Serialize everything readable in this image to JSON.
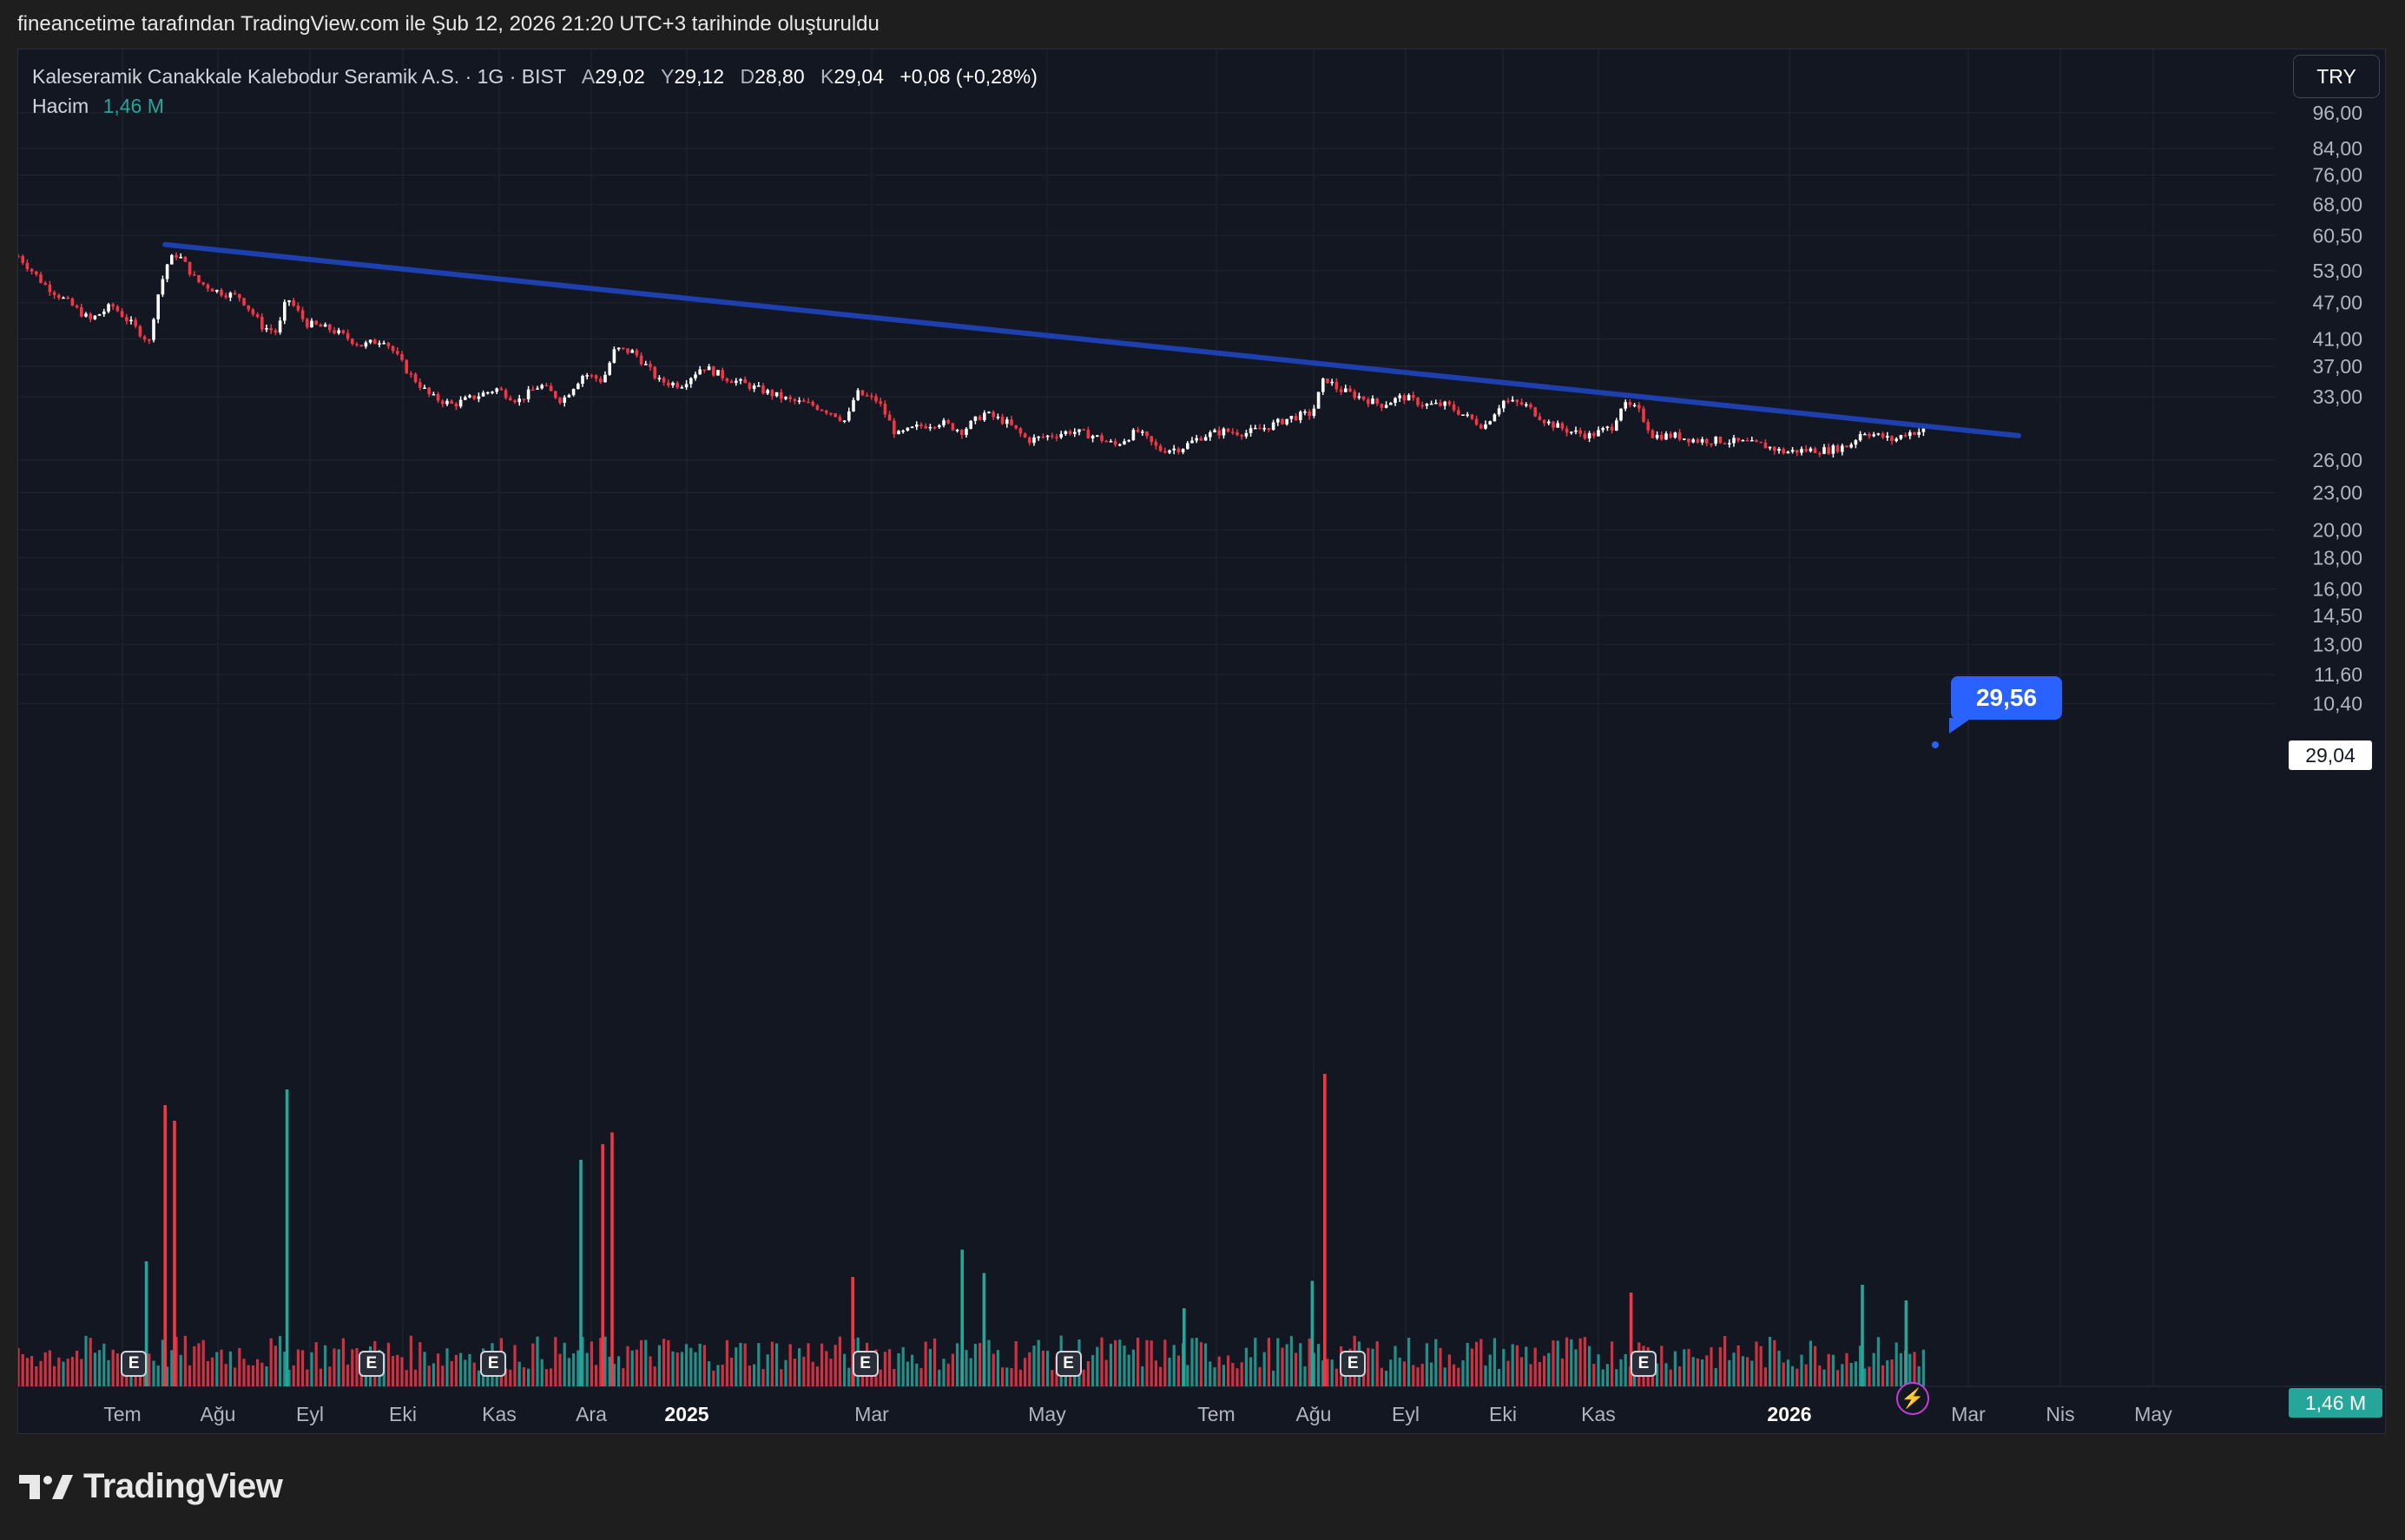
{
  "header": {
    "snapshot_text": "fineancetime tarafından TradingView.com ile Şub 12, 2026 21:20 UTC+3 tarihinde oluşturuldu"
  },
  "legend": {
    "symbol": "Kaleseramik Canakkale Kalebodur Seramik A.S. · 1G · BIST",
    "open_label": "A",
    "open": "29,02",
    "high_label": "Y",
    "high": "29,12",
    "low_label": "D",
    "low": "28,80",
    "close_label": "K",
    "close": "29,04",
    "change": "+0,08 (+0,28%)",
    "volume_label": "Hacim",
    "volume": "1,46 M"
  },
  "currency": "TRY",
  "callout": {
    "value": "29,56"
  },
  "last_price_tag": "29,04",
  "volume_tag": "1,46 M",
  "earnings_marker": "E",
  "brand": {
    "name": "TradingView"
  },
  "colors": {
    "up": "#ffffff",
    "down": "#f23645",
    "vol_up": "#26a69a",
    "vol_down": "#f23645",
    "trendline": "#1e3fae",
    "callout": "#2962ff"
  },
  "icons": {
    "earnings": "earnings-icon",
    "lightning": "lightning-icon",
    "logo": "tradingview-logo-icon"
  },
  "chart_data": {
    "type": "candlestick",
    "price_scale": "log",
    "y_ticks": [
      "96,00",
      "84,00",
      "76,00",
      "68,00",
      "60,50",
      "53,00",
      "47,00",
      "41,00",
      "37,00",
      "33,00",
      "26,00",
      "23,00",
      "20,00",
      "18,00",
      "16,00",
      "14,50",
      "13,00",
      "11,60",
      "10,40"
    ],
    "x_ticks": [
      "Tem",
      "Ağu",
      "Eyl",
      "Eki",
      "Kas",
      "Ara",
      "2025",
      "Mar",
      "May",
      "Tem",
      "Ağu",
      "Eyl",
      "Eki",
      "Kas",
      "2026",
      "Mar",
      "Nis",
      "May"
    ],
    "x_ticks_bold": [
      "2025",
      "2026"
    ],
    "close_path": [
      {
        "x": "2024-06-12",
        "y": 56.0
      },
      {
        "x": "2024-06-20",
        "y": 50.5
      },
      {
        "x": "2024-06-28",
        "y": 47.0
      },
      {
        "x": "2024-07-05",
        "y": 44.0
      },
      {
        "x": "2024-07-12",
        "y": 46.5
      },
      {
        "x": "2024-07-19",
        "y": 43.0
      },
      {
        "x": "2024-07-24",
        "y": 40.5
      },
      {
        "x": "2024-07-26",
        "y": 47.0
      },
      {
        "x": "2024-07-30",
        "y": 55.0
      },
      {
        "x": "2024-08-02",
        "y": 56.5
      },
      {
        "x": "2024-08-08",
        "y": 51.0
      },
      {
        "x": "2024-08-15",
        "y": 49.0
      },
      {
        "x": "2024-08-22",
        "y": 48.0
      },
      {
        "x": "2024-08-29",
        "y": 43.0
      },
      {
        "x": "2024-09-03",
        "y": 42.0
      },
      {
        "x": "2024-09-06",
        "y": 48.0
      },
      {
        "x": "2024-09-12",
        "y": 43.5
      },
      {
        "x": "2024-09-20",
        "y": 42.5
      },
      {
        "x": "2024-09-30",
        "y": 40.0
      },
      {
        "x": "2024-10-07",
        "y": 41.0
      },
      {
        "x": "2024-10-15",
        "y": 36.0
      },
      {
        "x": "2024-10-22",
        "y": 33.0
      },
      {
        "x": "2024-10-29",
        "y": 32.0
      },
      {
        "x": "2024-11-05",
        "y": 33.0
      },
      {
        "x": "2024-11-12",
        "y": 34.0
      },
      {
        "x": "2024-11-19",
        "y": 32.5
      },
      {
        "x": "2024-11-26",
        "y": 34.5
      },
      {
        "x": "2024-12-03",
        "y": 32.5
      },
      {
        "x": "2024-12-10",
        "y": 36.0
      },
      {
        "x": "2024-12-16",
        "y": 35.0
      },
      {
        "x": "2024-12-20",
        "y": 39.5
      },
      {
        "x": "2024-12-26",
        "y": 39.0
      },
      {
        "x": "2025-01-03",
        "y": 35.0
      },
      {
        "x": "2025-01-10",
        "y": 34.5
      },
      {
        "x": "2025-01-17",
        "y": 37.0
      },
      {
        "x": "2025-01-24",
        "y": 35.5
      },
      {
        "x": "2025-01-31",
        "y": 34.5
      },
      {
        "x": "2025-02-07",
        "y": 33.5
      },
      {
        "x": "2025-02-14",
        "y": 32.5
      },
      {
        "x": "2025-02-21",
        "y": 32.0
      },
      {
        "x": "2025-02-28",
        "y": 31.0
      },
      {
        "x": "2025-03-04",
        "y": 30.0
      },
      {
        "x": "2025-03-07",
        "y": 33.5
      },
      {
        "x": "2025-03-14",
        "y": 32.5
      },
      {
        "x": "2025-03-20",
        "y": 28.5
      },
      {
        "x": "2025-03-27",
        "y": 29.5
      },
      {
        "x": "2025-04-03",
        "y": 30.0
      },
      {
        "x": "2025-04-10",
        "y": 29.0
      },
      {
        "x": "2025-04-17",
        "y": 31.0
      },
      {
        "x": "2025-04-24",
        "y": 30.0
      },
      {
        "x": "2025-05-01",
        "y": 28.0
      },
      {
        "x": "2025-05-08",
        "y": 28.5
      },
      {
        "x": "2025-05-15",
        "y": 29.0
      },
      {
        "x": "2025-05-22",
        "y": 28.5
      },
      {
        "x": "2025-05-29",
        "y": 27.5
      },
      {
        "x": "2025-06-05",
        "y": 29.0
      },
      {
        "x": "2025-06-12",
        "y": 27.0
      },
      {
        "x": "2025-06-19",
        "y": 27.2
      },
      {
        "x": "2025-06-26",
        "y": 28.5
      },
      {
        "x": "2025-07-03",
        "y": 29.0
      },
      {
        "x": "2025-07-10",
        "y": 28.8
      },
      {
        "x": "2025-07-17",
        "y": 29.5
      },
      {
        "x": "2025-07-24",
        "y": 30.5
      },
      {
        "x": "2025-07-31",
        "y": 31.0
      },
      {
        "x": "2025-08-04",
        "y": 35.5
      },
      {
        "x": "2025-08-08",
        "y": 34.0
      },
      {
        "x": "2025-08-15",
        "y": 33.0
      },
      {
        "x": "2025-08-22",
        "y": 32.0
      },
      {
        "x": "2025-08-29",
        "y": 33.0
      },
      {
        "x": "2025-09-05",
        "y": 32.0
      },
      {
        "x": "2025-09-12",
        "y": 32.0
      },
      {
        "x": "2025-09-19",
        "y": 30.5
      },
      {
        "x": "2025-09-24",
        "y": 29.5
      },
      {
        "x": "2025-09-30",
        "y": 32.5
      },
      {
        "x": "2025-10-07",
        "y": 32.0
      },
      {
        "x": "2025-10-14",
        "y": 30.0
      },
      {
        "x": "2025-10-21",
        "y": 29.0
      },
      {
        "x": "2025-10-28",
        "y": 28.5
      },
      {
        "x": "2025-11-04",
        "y": 29.5
      },
      {
        "x": "2025-11-07",
        "y": 32.0
      },
      {
        "x": "2025-11-12",
        "y": 31.5
      },
      {
        "x": "2025-11-17",
        "y": 28.5
      },
      {
        "x": "2025-11-24",
        "y": 28.5
      },
      {
        "x": "2025-12-01",
        "y": 28.0
      },
      {
        "x": "2025-12-08",
        "y": 28.0
      },
      {
        "x": "2025-12-15",
        "y": 27.8
      },
      {
        "x": "2025-12-22",
        "y": 27.5
      },
      {
        "x": "2025-12-29",
        "y": 26.8
      },
      {
        "x": "2026-01-05",
        "y": 27.0
      },
      {
        "x": "2026-01-12",
        "y": 27.0
      },
      {
        "x": "2026-01-19",
        "y": 27.5
      },
      {
        "x": "2026-01-23",
        "y": 29.0
      },
      {
        "x": "2026-01-28",
        "y": 28.5
      },
      {
        "x": "2026-02-02",
        "y": 28.0
      },
      {
        "x": "2026-02-06",
        "y": 28.8
      },
      {
        "x": "2026-02-12",
        "y": 29.04
      }
    ],
    "trendline": {
      "start": {
        "x": "2024-07-29",
        "y": 58.5
      },
      "end": {
        "x": "2026-03-14",
        "y": 28.5
      }
    },
    "volume_spikes": [
      {
        "x": "2024-07-23",
        "v": 3.2,
        "up": true
      },
      {
        "x": "2024-07-29",
        "v": 7.2,
        "up": false
      },
      {
        "x": "2024-08-01",
        "v": 6.8,
        "up": false
      },
      {
        "x": "2024-09-06",
        "v": 7.6,
        "up": true
      },
      {
        "x": "2024-12-09",
        "v": 5.8,
        "up": true
      },
      {
        "x": "2024-12-16",
        "v": 6.2,
        "up": false
      },
      {
        "x": "2024-12-19",
        "v": 6.5,
        "up": false
      },
      {
        "x": "2025-03-06",
        "v": 2.8,
        "up": false
      },
      {
        "x": "2025-04-10",
        "v": 3.5,
        "up": true
      },
      {
        "x": "2025-04-17",
        "v": 2.9,
        "up": true
      },
      {
        "x": "2025-06-20",
        "v": 2.0,
        "up": true
      },
      {
        "x": "2025-07-31",
        "v": 2.7,
        "up": true
      },
      {
        "x": "2025-08-04",
        "v": 8.0,
        "up": false
      },
      {
        "x": "2025-11-10",
        "v": 2.4,
        "up": false
      },
      {
        "x": "2026-01-23",
        "v": 2.6,
        "up": true
      },
      {
        "x": "2026-02-06",
        "v": 2.2,
        "up": true
      }
    ],
    "earnings_dates": [
      "2024-07-19",
      "2024-10-03",
      "2024-11-11",
      "2025-03-10",
      "2025-05-14",
      "2025-08-13",
      "2025-11-14"
    ]
  }
}
